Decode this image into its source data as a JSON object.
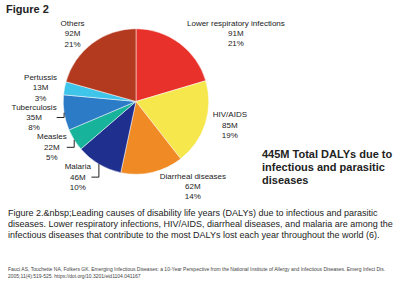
{
  "heading": "Figure 2",
  "chart_data": {
    "type": "pie",
    "categories": [
      "Lower respiratory infections",
      "HIV/AIDS",
      "Diarrheal diseases",
      "Malaria",
      "Measles",
      "Tuberculosis",
      "Pertussis",
      "Others"
    ],
    "values": [
      91,
      85,
      62,
      46,
      22,
      35,
      13,
      92
    ],
    "value_labels": [
      "91M",
      "85M",
      "62M",
      "46M",
      "22M",
      "35M",
      "13M",
      "92M"
    ],
    "percent_labels": [
      "21%",
      "19%",
      "14%",
      "10%",
      "5%",
      "8%",
      "3%",
      "21%"
    ],
    "colors": [
      "#e8312a",
      "#f5e74c",
      "#f08a24",
      "#1f2f8e",
      "#18b39b",
      "#2b7bc6",
      "#3fc4ea",
      "#b3391f"
    ],
    "data_labels": true,
    "annotations": [
      "445M Total DALYs due to infectious and parasitic diseases"
    ]
  },
  "caption": "Figure 2.&nbsp;Leading causes of disability life years (DALYs) due to infectious and parasitic diseases. Lower respiratory infections, HIV/AIDS, diarrheal diseases, and malaria are among the infectious diseases that contribute to the most DALYs lost each year throughout the world (6).",
  "citation": "Fauci AS, Touchette NA, Folkers GK. Emerging Infectious Diseases: a 10-Year Perspective from the National Institute of Allergy and Infectious Diseases. Emerg Infect Dis. 2005;11(4):519-525. https://doi.org/10.3201/eid1104.041167"
}
